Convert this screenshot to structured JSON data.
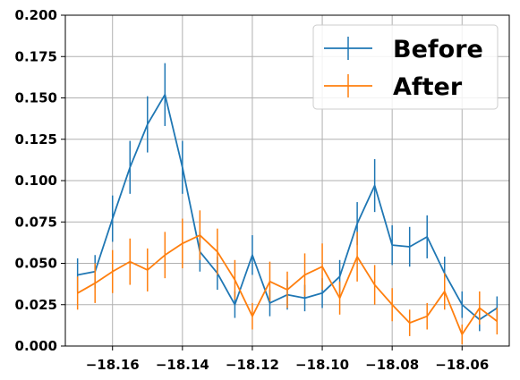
{
  "chart_data": {
    "type": "line",
    "title": "",
    "xlabel": "",
    "ylabel": "",
    "xlim": [
      -18.1735,
      -18.0465
    ],
    "ylim": [
      0,
      0.2
    ],
    "x_ticks": [
      -18.16,
      -18.14,
      -18.12,
      -18.1,
      -18.08,
      -18.06
    ],
    "x_tick_labels": [
      "−18.16",
      "−18.14",
      "−18.12",
      "−18.10",
      "−18.08",
      "−18.06"
    ],
    "y_ticks": [
      0,
      0.025,
      0.05,
      0.075,
      0.1,
      0.125,
      0.15,
      0.175,
      0.2
    ],
    "y_tick_labels": [
      "0.000",
      "0.025",
      "0.050",
      "0.075",
      "0.100",
      "0.125",
      "0.150",
      "0.175",
      "0.200"
    ],
    "grid": true,
    "legend_position": "top-right",
    "error_bars": true,
    "x": [
      -18.17,
      -18.165,
      -18.16,
      -18.155,
      -18.15,
      -18.145,
      -18.14,
      -18.135,
      -18.13,
      -18.125,
      -18.12,
      -18.115,
      -18.11,
      -18.105,
      -18.1,
      -18.095,
      -18.09,
      -18.085,
      -18.08,
      -18.075,
      -18.07,
      -18.065,
      -18.06,
      -18.055,
      -18.05
    ],
    "series": [
      {
        "name": "Before",
        "color": "#1f77b4",
        "values": [
          0.043,
          0.045,
          0.077,
          0.108,
          0.134,
          0.152,
          0.108,
          0.057,
          0.044,
          0.025,
          0.055,
          0.026,
          0.031,
          0.029,
          0.032,
          0.042,
          0.074,
          0.097,
          0.061,
          0.06,
          0.066,
          0.044,
          0.025,
          0.016,
          0.023
        ],
        "errors": [
          0.01,
          0.01,
          0.014,
          0.016,
          0.017,
          0.019,
          0.016,
          0.012,
          0.01,
          0.008,
          0.012,
          0.008,
          0.009,
          0.008,
          0.009,
          0.01,
          0.013,
          0.016,
          0.012,
          0.012,
          0.013,
          0.01,
          0.008,
          0.007,
          0.007
        ]
      },
      {
        "name": "After",
        "color": "#ff7f0e",
        "values": [
          0.032,
          0.038,
          0.045,
          0.051,
          0.046,
          0.055,
          0.062,
          0.067,
          0.057,
          0.04,
          0.018,
          0.039,
          0.034,
          0.043,
          0.048,
          0.029,
          0.054,
          0.037,
          0.025,
          0.014,
          0.018,
          0.033,
          0.007,
          0.023,
          0.015
        ],
        "errors": [
          0.01,
          0.012,
          0.013,
          0.014,
          0.013,
          0.014,
          0.015,
          0.015,
          0.014,
          0.012,
          0.008,
          0.012,
          0.011,
          0.013,
          0.014,
          0.01,
          0.015,
          0.012,
          0.01,
          0.008,
          0.008,
          0.011,
          0.006,
          0.01,
          0.008
        ]
      }
    ]
  }
}
